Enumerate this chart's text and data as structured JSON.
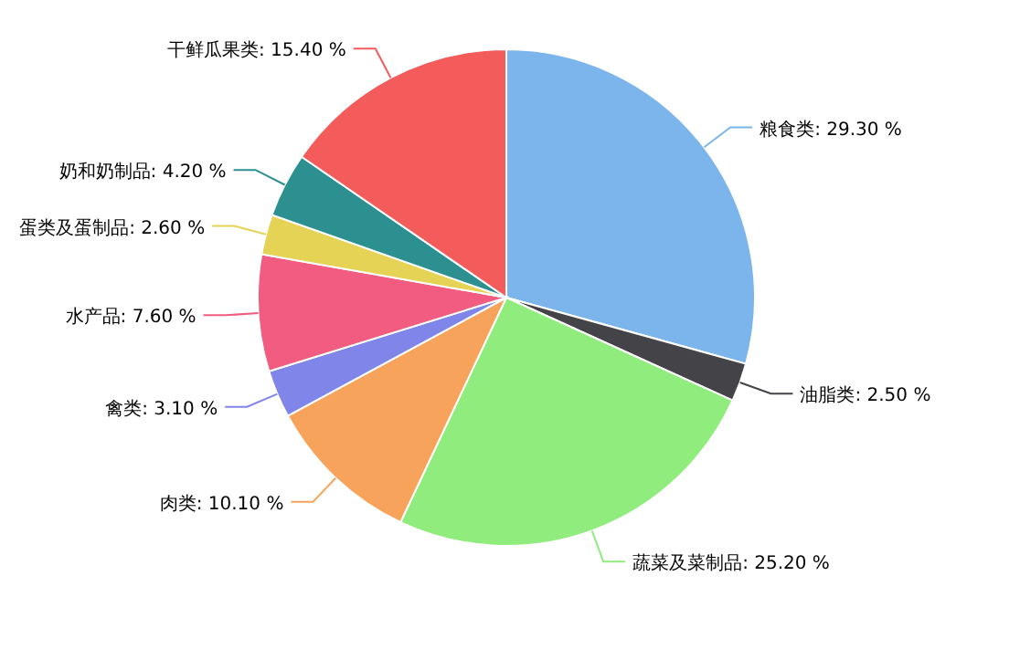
{
  "chart_data": {
    "type": "pie",
    "categories": [
      "粮食类",
      "油脂类",
      "蔬菜及菜制品",
      "肉类",
      "禽类",
      "水产品",
      "蛋类及蛋制品",
      "奶和奶制品",
      "干鲜瓜果类"
    ],
    "values": [
      29.3,
      2.5,
      25.2,
      10.1,
      3.1,
      7.6,
      2.6,
      4.2,
      15.4
    ],
    "value_labels": [
      "29.30 %",
      "2.50 %",
      "25.20 %",
      "10.10 %",
      "3.10 %",
      "7.60 %",
      "2.60 %",
      "4.20 %",
      "15.40 %"
    ],
    "colors": [
      "#7cb5ec",
      "#434348",
      "#90ed7d",
      "#f7a35c",
      "#8085e9",
      "#f15c80",
      "#e4d354",
      "#2b908f",
      "#f45b5b"
    ]
  }
}
